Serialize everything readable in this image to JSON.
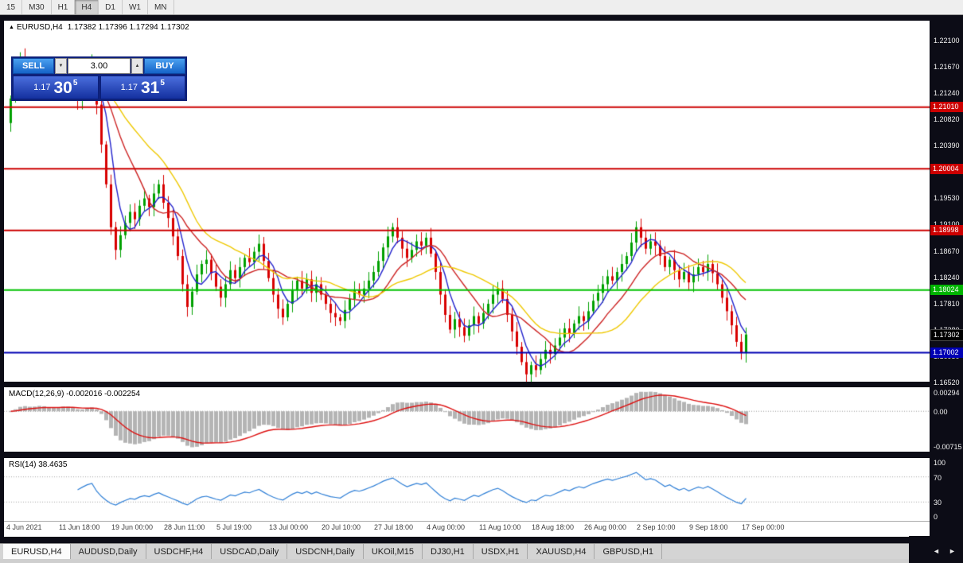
{
  "toolbar": {
    "timeframes": [
      "15",
      "M30",
      "H1",
      "H4",
      "D1",
      "W1",
      "MN"
    ],
    "active": "H4"
  },
  "chart_header": {
    "symbol": "EURUSD,H4",
    "ohlc": "1.17382 1.17396 1.17294 1.17302"
  },
  "trade_panel": {
    "sell_label": "SELL",
    "buy_label": "BUY",
    "volume": "3.00",
    "sell_price": {
      "small": "1.17",
      "big": "30",
      "sup": "5"
    },
    "buy_price": {
      "small": "1.17",
      "big": "31",
      "sup": "5"
    }
  },
  "icons": {
    "ohlc_marker": "▲",
    "spin_down": "▼",
    "spin_up": "▲",
    "tab_scroll_left": "◄",
    "tab_scroll_right": "►"
  },
  "price_axis": {
    "labels": [
      "1.22100",
      "1.21670",
      "1.21240",
      "1.20820",
      "1.20390",
      "1.19960",
      "1.19530",
      "1.19100",
      "1.18670",
      "1.18240",
      "1.17810",
      "1.17380",
      "1.16950",
      "1.16520"
    ],
    "badges": [
      {
        "value": "1.21010",
        "bg": "#cc0000"
      },
      {
        "value": "1.20004",
        "bg": "#cc0000"
      },
      {
        "value": "1.18998",
        "bg": "#cc0000"
      },
      {
        "value": "1.18024",
        "bg": "#00b400"
      },
      {
        "value": "1.17302",
        "bg": "#000000"
      },
      {
        "value": "1.17002",
        "bg": "#0000b4"
      }
    ]
  },
  "indicators": {
    "macd_label": "MACD(12,26,9) -0.002016 -0.002254",
    "macd_axis": [
      "0.00294",
      "0.00",
      "-0.00715"
    ],
    "rsi_label": "RSI(14) 38.4635",
    "rsi_axis": [
      "100",
      "70",
      "30",
      "0"
    ]
  },
  "time_axis": {
    "labels": [
      "4 Jun 2021",
      "11 Jun 18:00",
      "19 Jun 00:00",
      "28 Jun 11:00",
      "5 Jul 19:00",
      "13 Jul 00:00",
      "20 Jul 10:00",
      "27 Jul 18:00",
      "4 Aug 00:00",
      "11 Aug 10:00",
      "18 Aug 18:00",
      "26 Aug 00:00",
      "2 Sep 10:00",
      "9 Sep 18:00",
      "17 Sep 00:00"
    ]
  },
  "tabs": {
    "active_index": 0,
    "items": [
      "EURUSD,H4",
      "AUDUSD,Daily",
      "USDCHF,H4",
      "USDCAD,Daily",
      "USDCNH,Daily",
      "UKOil,M15",
      "DJ30,H1",
      "USDX,H1",
      "XAUUSD,H4",
      "GBPUSD,H1"
    ]
  },
  "chart_data": {
    "type": "candlestick",
    "title": "EURUSD,H4",
    "price_range": [
      1.1653,
      1.2242
    ],
    "up_color": "#00a000",
    "down_color": "#d80000",
    "closes": [
      1.2115,
      1.216,
      1.2182,
      1.2155,
      1.213,
      1.2145,
      1.216,
      1.214,
      1.2125,
      1.2132,
      1.2148,
      1.2165,
      1.215,
      1.2128,
      1.2112,
      1.2135,
      1.2158,
      1.2172,
      1.2105,
      1.204,
      1.1975,
      1.1905,
      1.1868,
      1.1892,
      1.1912,
      1.193,
      1.1918,
      1.194,
      1.1952,
      1.1938,
      1.196,
      1.1975,
      1.1945,
      1.192,
      1.189,
      1.1858,
      1.1812,
      1.1775,
      1.18,
      1.1828,
      1.1845,
      1.1852,
      1.183,
      1.1808,
      1.179,
      1.1812,
      1.1835,
      1.1822,
      1.184,
      1.1855,
      1.1848,
      1.1865,
      1.1878,
      1.185,
      1.1822,
      1.1795,
      1.1772,
      1.1758,
      1.178,
      1.1802,
      1.1818,
      1.1805,
      1.182,
      1.1798,
      1.1812,
      1.1795,
      1.178,
      1.1765,
      1.1758,
      1.1752,
      1.177,
      1.1788,
      1.1802,
      1.1795,
      1.1805,
      1.1818,
      1.1832,
      1.185,
      1.1872,
      1.189,
      1.1905,
      1.1888,
      1.187,
      1.1855,
      1.1868,
      1.1882,
      1.1875,
      1.1888,
      1.1862,
      1.1832,
      1.1795,
      1.1762,
      1.1738,
      1.1755,
      1.1742,
      1.1728,
      1.1745,
      1.176,
      1.1748,
      1.1765,
      1.178,
      1.1795,
      1.1805,
      1.1788,
      1.1762,
      1.1735,
      1.171,
      1.1685,
      1.1665,
      1.168,
      1.1672,
      1.169,
      1.1705,
      1.1698,
      1.1712,
      1.1725,
      1.174,
      1.1732,
      1.1748,
      1.176,
      1.1752,
      1.1768,
      1.1785,
      1.1798,
      1.1812,
      1.1825,
      1.1818,
      1.1832,
      1.1845,
      1.1858,
      1.188,
      1.1905,
      1.1888,
      1.187,
      1.1882,
      1.1875,
      1.1858,
      1.184,
      1.1852,
      1.1835,
      1.182,
      1.1832,
      1.1815,
      1.1828,
      1.184,
      1.1832,
      1.1845,
      1.183,
      1.1812,
      1.179,
      1.1768,
      1.1745,
      1.1718,
      1.17,
      1.173
    ],
    "ma": [
      {
        "period": 5,
        "color": "#2222cc"
      },
      {
        "period": 12,
        "color": "#cc2222"
      },
      {
        "period": 22,
        "color": "#eec800"
      }
    ],
    "hlines": [
      {
        "price": 1.2101,
        "color": "#cc0000"
      },
      {
        "price": 1.20004,
        "color": "#cc0000"
      },
      {
        "price": 1.18998,
        "color": "#cc0000"
      },
      {
        "price": 1.18024,
        "color": "#00c000"
      },
      {
        "price": 1.17002,
        "color": "#0000b4"
      }
    ],
    "macd": {
      "fast": 12,
      "slow": 26,
      "signal": 9,
      "hist_color": "#b4b4b4",
      "signal_color": "#dd1111",
      "current": "-0.002016",
      "current_signal": "-0.002254"
    },
    "rsi": {
      "period": 14,
      "color": "#2f7fd6",
      "levels": [
        70,
        30
      ],
      "current": "38.4635"
    }
  }
}
